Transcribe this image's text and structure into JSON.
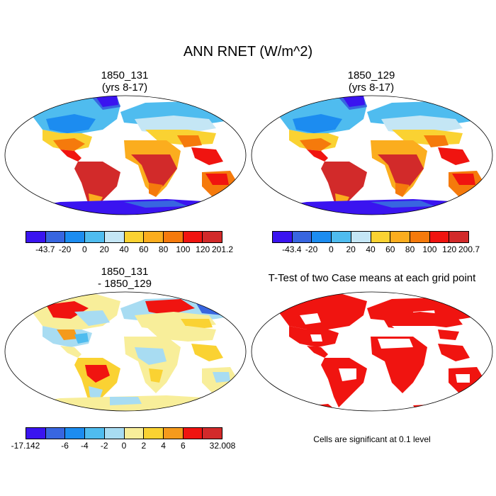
{
  "title": "ANN RNET (W/m^2)",
  "panels": {
    "p1": {
      "title_line1": "1850_131",
      "title_line2": "(yrs 8-17)"
    },
    "p2": {
      "title_line1": "1850_129",
      "title_line2": "(yrs 8-17)"
    },
    "p3": {
      "title_line1": "1850_131",
      "title_line2": "- 1850_129"
    },
    "p4": {
      "title": "T-Test of two Case means at each grid point",
      "note": "Cells are significant at 0.1 level"
    }
  },
  "colorbars": {
    "cb1": {
      "colors": [
        "#3a14f0",
        "#3866e0",
        "#1c8cf0",
        "#4fbcef",
        "#c4e6f5",
        "#fad232",
        "#fbad1e",
        "#f57a0c",
        "#f01410",
        "#d22a2a"
      ],
      "labels": [
        "-43.7",
        "-20",
        "0",
        "20",
        "40",
        "60",
        "80",
        "100",
        "120",
        "201.2"
      ]
    },
    "cb2": {
      "colors": [
        "#3a14f0",
        "#3866e0",
        "#1c8cf0",
        "#4fbcef",
        "#c4e6f5",
        "#fad232",
        "#fbad1e",
        "#f57a0c",
        "#f01410",
        "#d22a2a"
      ],
      "labels": [
        "-43.4",
        "-20",
        "0",
        "20",
        "40",
        "60",
        "80",
        "100",
        "120",
        "200.7"
      ]
    },
    "cb3": {
      "colors": [
        "#3a14f0",
        "#3866e0",
        "#1c8cf0",
        "#4fbcef",
        "#a8dcf2",
        "#f8ee9a",
        "#fad232",
        "#f59a1c",
        "#f01410",
        "#d22a2a"
      ],
      "labels": [
        "-17.142",
        "-6",
        "-4",
        "-2",
        "0",
        "2",
        "4",
        "6",
        "32.008"
      ]
    }
  }
}
